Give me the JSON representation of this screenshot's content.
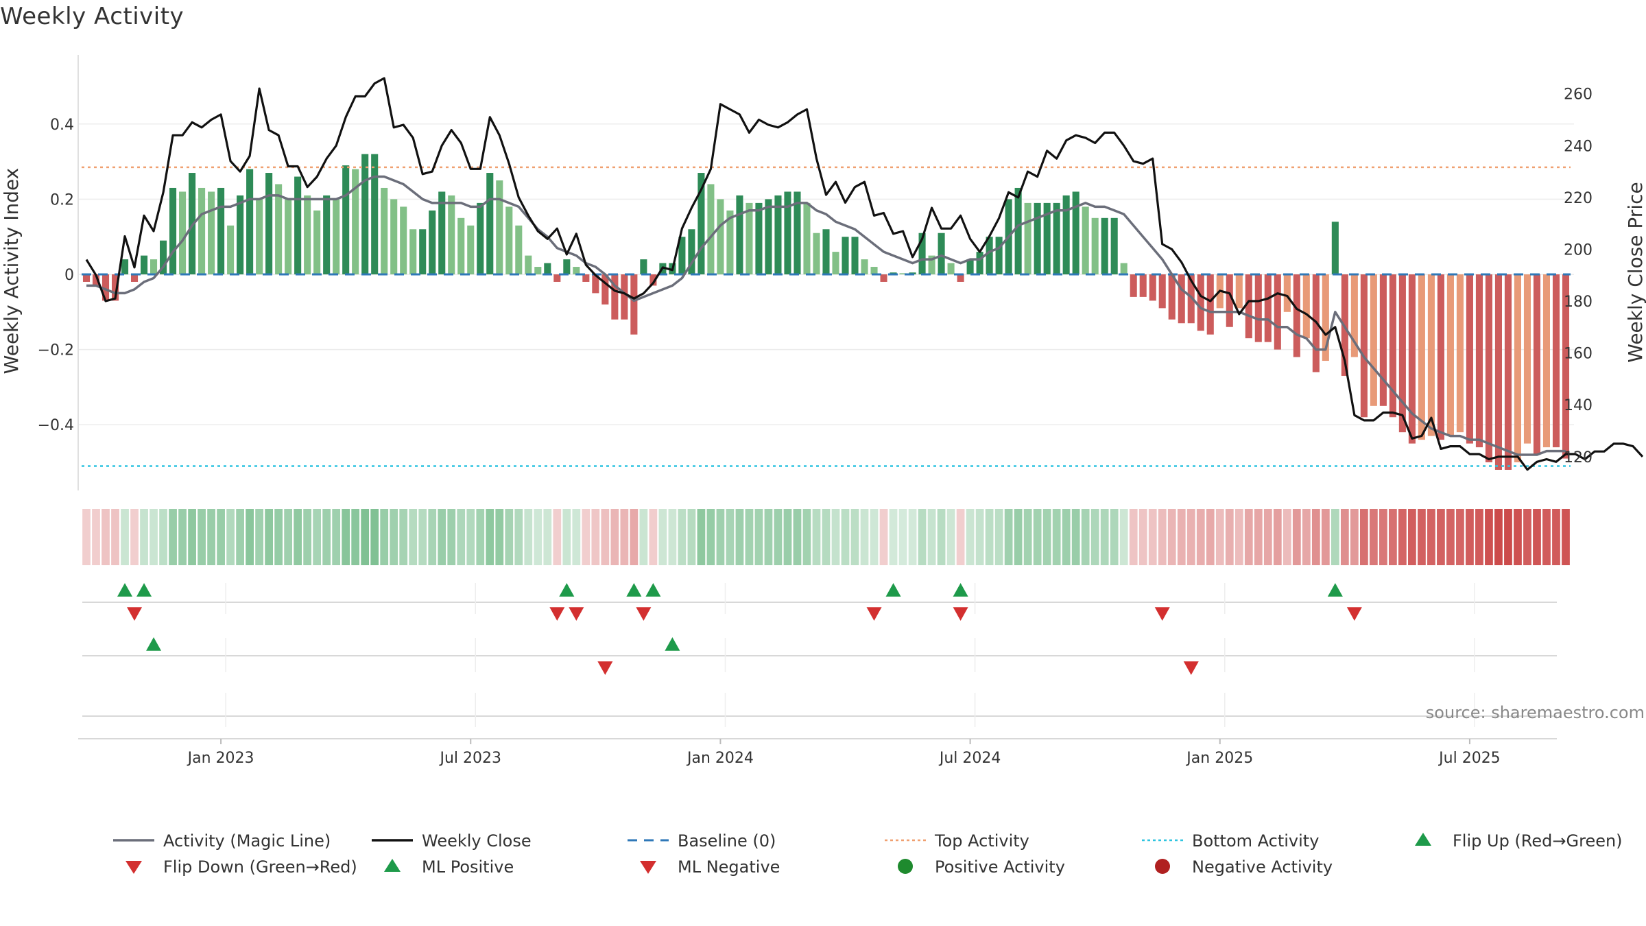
{
  "chart_data": {
    "type": "bar",
    "title": "Weekly Activity",
    "ylabel_left": "Weekly Activity Index",
    "ylabel_right": "Weekly Close Price",
    "source": "source: sharemaestro.com",
    "left_ylim": [
      -0.58,
      0.58
    ],
    "left_ticks": [
      {
        "v": 0.4,
        "label": "0.4"
      },
      {
        "v": 0.2,
        "label": "0.2"
      },
      {
        "v": 0,
        "label": "0"
      },
      {
        "v": -0.2,
        "label": "−0.2"
      },
      {
        "v": -0.4,
        "label": "−0.4"
      }
    ],
    "right_ylim": [
      107.5,
      275
    ],
    "right_ticks": [
      {
        "v": 260,
        "label": "260"
      },
      {
        "v": 240,
        "label": "240"
      },
      {
        "v": 220,
        "label": "220"
      },
      {
        "v": 200,
        "label": "200"
      },
      {
        "v": 180,
        "label": "180"
      },
      {
        "v": 160,
        "label": "160"
      },
      {
        "v": 140,
        "label": "140"
      },
      {
        "v": 120,
        "label": "120"
      }
    ],
    "x_ticks": [
      {
        "week": 14.5,
        "label": "Jan 2023"
      },
      {
        "week": 40.5,
        "label": "Jul 2023"
      },
      {
        "week": 66.5,
        "label": "Jan 2024"
      },
      {
        "week": 92.5,
        "label": "Jul 2024"
      },
      {
        "week": 118.5,
        "label": "Jan 2025"
      },
      {
        "week": 144.5,
        "label": "Jul 2025"
      }
    ],
    "top_activity": 0.285,
    "bottom_activity": -0.51,
    "baseline": 0,
    "activity": [
      -0.02,
      -0.03,
      -0.07,
      -0.07,
      0.04,
      -0.02,
      0.05,
      0.04,
      0.09,
      0.23,
      0.22,
      0.27,
      0.23,
      0.22,
      0.23,
      0.13,
      0.21,
      0.28,
      0.2,
      0.27,
      0.24,
      0.2,
      0.26,
      0.21,
      0.17,
      0.21,
      0.2,
      0.29,
      0.28,
      0.32,
      0.32,
      0.23,
      0.2,
      0.18,
      0.12,
      0.12,
      0.17,
      0.22,
      0.21,
      0.15,
      0.13,
      0.19,
      0.27,
      0.25,
      0.18,
      0.13,
      0.05,
      0.02,
      0.03,
      -0.02,
      0.04,
      0.02,
      -0.02,
      -0.05,
      -0.08,
      -0.12,
      -0.12,
      -0.16,
      0.04,
      -0.03,
      0.03,
      0.03,
      0.1,
      0.12,
      0.27,
      0.24,
      0.2,
      0.17,
      0.21,
      0.19,
      0.19,
      0.2,
      0.21,
      0.22,
      0.22,
      0.19,
      0.11,
      0.12,
      0.06,
      0.1,
      0.1,
      0.04,
      0.02,
      -0.02,
      0.005,
      0.003,
      0.005,
      0.11,
      0.05,
      0.11,
      0.03,
      -0.02,
      0.04,
      0.06,
      0.1,
      0.1,
      0.2,
      0.23,
      0.19,
      0.19,
      0.19,
      0.19,
      0.21,
      0.22,
      0.18,
      0.15,
      0.15,
      0.15,
      0.03,
      -0.06,
      -0.06,
      -0.07,
      -0.09,
      -0.12,
      -0.13,
      -0.13,
      -0.15,
      -0.16,
      -0.09,
      -0.14,
      -0.09,
      -0.17,
      -0.18,
      -0.18,
      -0.2,
      -0.1,
      -0.22,
      -0.17,
      -0.26,
      -0.23,
      0.14,
      -0.27,
      -0.22,
      -0.38,
      -0.35,
      -0.35,
      -0.38,
      -0.42,
      -0.45,
      -0.44,
      -0.43,
      -0.44,
      -0.43,
      -0.42,
      -0.45,
      -0.46,
      -0.5,
      -0.52,
      -0.52,
      -0.5,
      -0.45,
      -0.48,
      -0.46,
      -0.46,
      -0.49
    ],
    "close": [
      196,
      190,
      180,
      181,
      205,
      193,
      213,
      207,
      222,
      244,
      244,
      249,
      247,
      250,
      252,
      234,
      230,
      236,
      262,
      246,
      244,
      232,
      232,
      224,
      228,
      235,
      240,
      251,
      259,
      259,
      264,
      266,
      247,
      248,
      243,
      229,
      230,
      240,
      246,
      241,
      231,
      231,
      251,
      244,
      233,
      220,
      213,
      207,
      204,
      208,
      198,
      206,
      194,
      190,
      187,
      184,
      183,
      181,
      183,
      187,
      193,
      192,
      208,
      216,
      223,
      231,
      256,
      254,
      252,
      245,
      250,
      248,
      247,
      249,
      252,
      254,
      235,
      221,
      226,
      218,
      224,
      226,
      213,
      214,
      206,
      207,
      197,
      204,
      216,
      208,
      208,
      213,
      204,
      199,
      205,
      212,
      222,
      220,
      230,
      228,
      238,
      235,
      242,
      244,
      243,
      241,
      245,
      245,
      240,
      234,
      233,
      235,
      202,
      200,
      195,
      188,
      182,
      180,
      184,
      183,
      175,
      180,
      180,
      181,
      183,
      182,
      177,
      175,
      172,
      167,
      170,
      157,
      136,
      134,
      134,
      137,
      137,
      136,
      127,
      128,
      135,
      123,
      124,
      124,
      121,
      121,
      119,
      120,
      120,
      120,
      115,
      118,
      119,
      118,
      121,
      121,
      119,
      122,
      122,
      125,
      125,
      124,
      120
    ],
    "ma": [
      -0.03,
      -0.03,
      -0.04,
      -0.05,
      -0.05,
      -0.04,
      -0.02,
      -0.01,
      0.02,
      0.06,
      0.09,
      0.13,
      0.16,
      0.17,
      0.18,
      0.18,
      0.19,
      0.2,
      0.2,
      0.21,
      0.21,
      0.2,
      0.2,
      0.2,
      0.2,
      0.2,
      0.2,
      0.21,
      0.23,
      0.25,
      0.26,
      0.26,
      0.25,
      0.24,
      0.22,
      0.2,
      0.19,
      0.19,
      0.19,
      0.19,
      0.18,
      0.18,
      0.2,
      0.2,
      0.19,
      0.18,
      0.15,
      0.12,
      0.1,
      0.07,
      0.06,
      0.05,
      0.03,
      0.02,
      0,
      -0.03,
      -0.05,
      -0.07,
      -0.06,
      -0.05,
      -0.04,
      -0.03,
      -0.01,
      0.03,
      0.07,
      0.1,
      0.13,
      0.15,
      0.16,
      0.17,
      0.17,
      0.18,
      0.18,
      0.18,
      0.19,
      0.19,
      0.17,
      0.16,
      0.14,
      0.13,
      0.12,
      0.1,
      0.08,
      0.06,
      0.05,
      0.04,
      0.03,
      0.04,
      0.04,
      0.05,
      0.04,
      0.03,
      0.04,
      0.04,
      0.06,
      0.07,
      0.1,
      0.13,
      0.14,
      0.15,
      0.16,
      0.17,
      0.17,
      0.18,
      0.19,
      0.18,
      0.18,
      0.17,
      0.16,
      0.13,
      0.1,
      0.07,
      0.04,
      0,
      -0.04,
      -0.06,
      -0.09,
      -0.1,
      -0.1,
      -0.1,
      -0.1,
      -0.11,
      -0.12,
      -0.12,
      -0.14,
      -0.14,
      -0.16,
      -0.17,
      -0.2,
      -0.2,
      -0.1,
      -0.14,
      -0.18,
      -0.22,
      -0.25,
      -0.28,
      -0.31,
      -0.34,
      -0.37,
      -0.39,
      -0.41,
      -0.42,
      -0.43,
      -0.43,
      -0.44,
      -0.44,
      -0.45,
      -0.46,
      -0.47,
      -0.48,
      -0.48,
      -0.48,
      -0.47,
      -0.47,
      -0.47
    ],
    "flip_up_weeks": [
      4,
      6,
      50,
      57,
      59,
      84,
      91,
      130
    ],
    "flip_down_weeks": [
      5,
      49,
      51,
      58,
      82,
      91,
      112,
      132
    ],
    "ml_positive_weeks": [
      7,
      61
    ],
    "ml_negative_weeks": [
      54,
      115
    ],
    "legend": [
      {
        "label": "Activity (Magic Line)",
        "color": "#6b6e7a",
        "style": "line"
      },
      {
        "label": "Weekly Close",
        "color": "#111111",
        "style": "line"
      },
      {
        "label": "Baseline (0)",
        "color": "#2f78b8",
        "style": "dash"
      },
      {
        "label": "Top Activity",
        "color": "#f0a070",
        "style": "dot"
      },
      {
        "label": "Bottom Activity",
        "color": "#2ec4e0",
        "style": "dot"
      },
      {
        "label": "Flip Up (Red→Green)",
        "color": "#1e9a4a",
        "style": "tri-up"
      },
      {
        "label": "Flip Down (Green→Red)",
        "color": "#d32f2f",
        "style": "tri-down"
      },
      {
        "label": "ML Positive",
        "color": "#1e9a4a",
        "style": "tri-up"
      },
      {
        "label": "ML Negative",
        "color": "#d32f2f",
        "style": "tri-down"
      },
      {
        "label": "Positive Activity",
        "color": "#1e8a2e",
        "style": "dot-marker"
      },
      {
        "label": "Negative Activity",
        "color": "#b02020",
        "style": "dot-marker"
      }
    ],
    "colors": {
      "pos_dark": "#2e8b57",
      "pos_light": "#82c087",
      "neg_dark": "#cc5c5c",
      "neg_light": "#e89a78"
    }
  }
}
